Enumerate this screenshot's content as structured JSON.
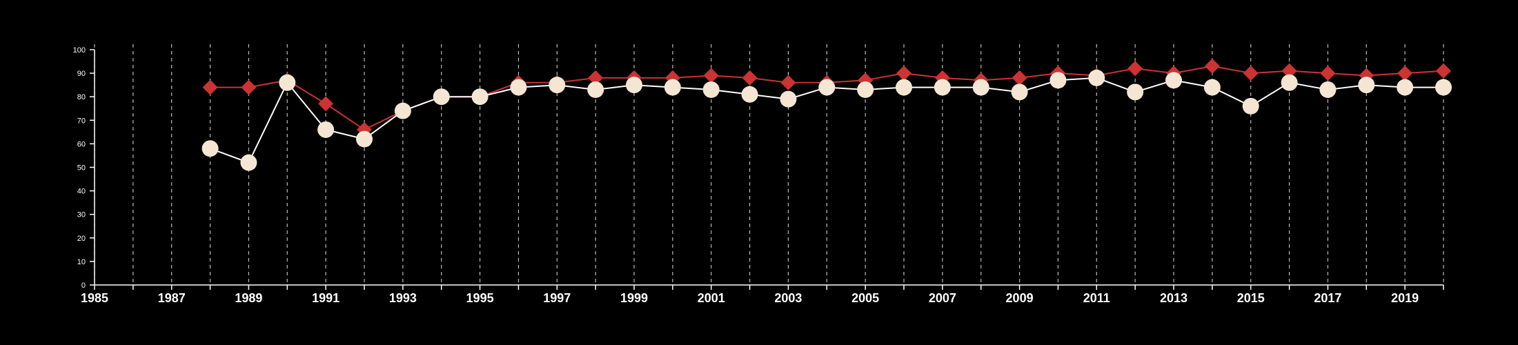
{
  "chart_data": {
    "type": "line",
    "title": "",
    "xlabel": "",
    "ylabel": "",
    "xlim": [
      1985,
      2020
    ],
    "ylim": [
      0,
      100
    ],
    "yticks": [
      0,
      10,
      20,
      30,
      40,
      50,
      60,
      70,
      80,
      90,
      100
    ],
    "xticks": [
      1985,
      1987,
      1989,
      1991,
      1993,
      1995,
      1997,
      1999,
      2001,
      2003,
      2005,
      2007,
      2009,
      2011,
      2013,
      2015,
      2017,
      2019
    ],
    "grid": "vertical dashed lines at every year",
    "legend": "none",
    "x": [
      1988,
      1989,
      1990,
      1991,
      1992,
      1993,
      1994,
      1995,
      1996,
      1997,
      1998,
      1999,
      2000,
      2001,
      2002,
      2003,
      2004,
      2005,
      2006,
      2007,
      2008,
      2009,
      2010,
      2011,
      2012,
      2013,
      2014,
      2015,
      2016,
      2017,
      2018,
      2019,
      2020
    ],
    "series": [
      {
        "marker": "diamond",
        "color": "#cc3333",
        "values": [
          84,
          84,
          87,
          77,
          66,
          74,
          80,
          80,
          86,
          86,
          88,
          88,
          88,
          89,
          88,
          86,
          86,
          87,
          90,
          88,
          87,
          88,
          90,
          89,
          92,
          90,
          93,
          90,
          91,
          90,
          89,
          90,
          91
        ]
      },
      {
        "marker": "circle",
        "color": "#f5e6d3",
        "line_color": "#ffffff",
        "values": [
          58,
          52,
          86,
          66,
          62,
          74,
          80,
          80,
          84,
          85,
          83,
          85,
          84,
          83,
          81,
          79,
          84,
          83,
          84,
          84,
          84,
          82,
          87,
          88,
          82,
          87,
          84,
          76,
          86,
          83,
          85,
          84,
          84
        ]
      }
    ]
  }
}
